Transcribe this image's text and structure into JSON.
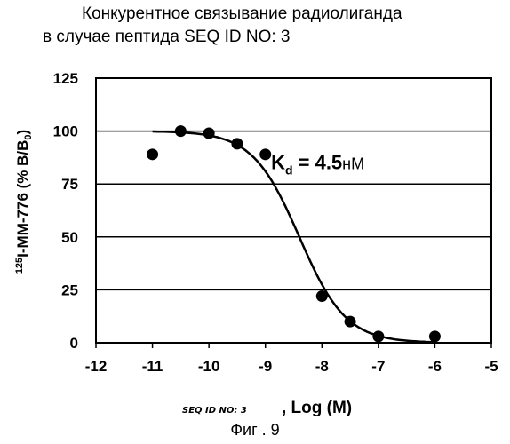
{
  "title_line1": "Конкурентное связывание радиолиганда",
  "title_line2": "в случае пептида SEQ ID NO: 3",
  "figure_caption": "Фиг . 9",
  "chart_data": {
    "type": "scatter",
    "title": "Конкурентное связывание радиолиганда в случае пептида SEQ ID NO: 3",
    "ylabel": "125I-MM-776 (% B/B0)",
    "xlabel_handwritten": "SEQ ID NO: 3",
    "xlabel": ", Log (M)",
    "xlim": [
      -12,
      -5
    ],
    "ylim": [
      0,
      125
    ],
    "x_ticks": [
      -12,
      -11,
      -10,
      -9,
      -8,
      -7,
      -6,
      -5
    ],
    "y_ticks": [
      0,
      25,
      50,
      75,
      100,
      125
    ],
    "grid": "horizontal",
    "annotation": {
      "main": "K",
      "sub": "d",
      "value": " = 4.5",
      "unit": "нМ"
    },
    "series": [
      {
        "points": [
          {
            "x": -11,
            "y": 89
          },
          {
            "x": -10.5,
            "y": 100
          },
          {
            "x": -10,
            "y": 99
          },
          {
            "x": -9.5,
            "y": 94
          },
          {
            "x": -9,
            "y": 89
          },
          {
            "x": -8,
            "y": 22
          },
          {
            "x": -7.5,
            "y": 10
          },
          {
            "x": -7,
            "y": 3
          },
          {
            "x": -6,
            "y": 3
          }
        ]
      }
    ],
    "fit_curve": {
      "top": 100,
      "bottom": 0,
      "log_ic50": -8.4,
      "hill_slope": -1.05
    },
    "colors": {
      "ink": "#000000",
      "background": "#ffffff"
    }
  }
}
